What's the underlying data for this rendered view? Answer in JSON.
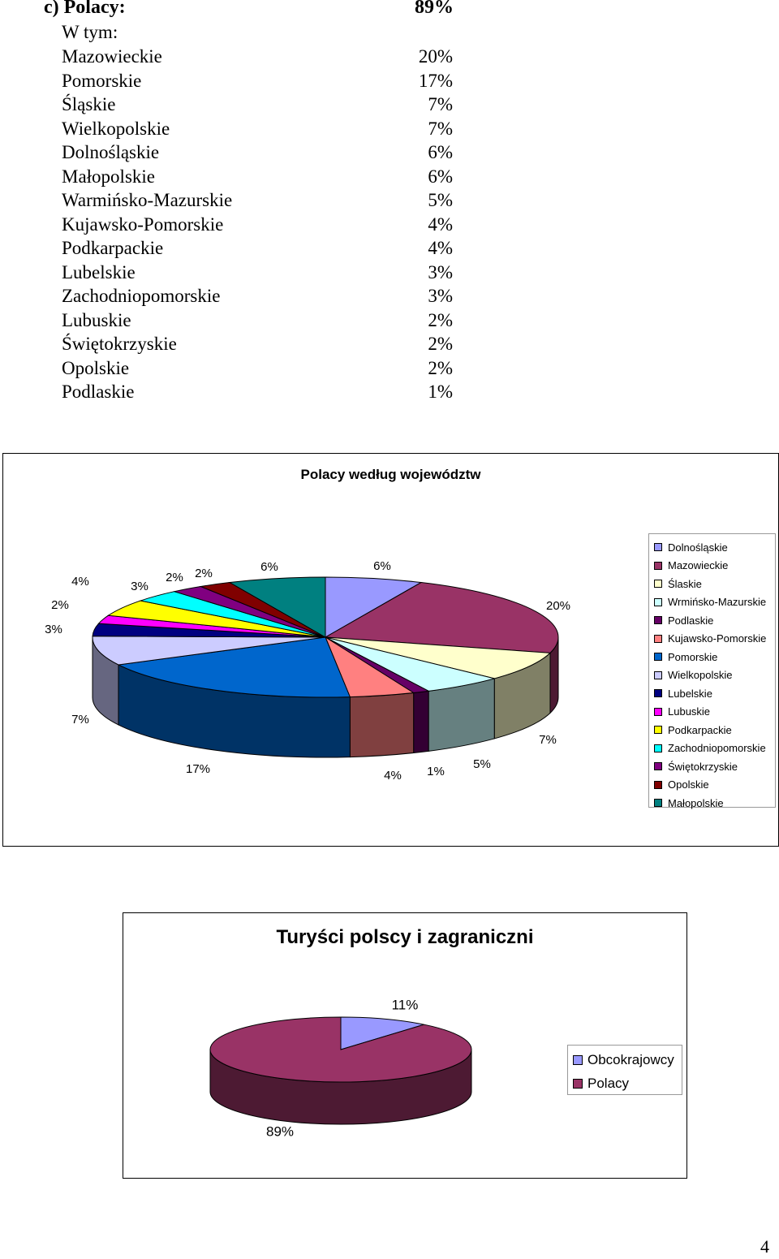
{
  "header": {
    "label": "c) Polacy:",
    "value": "89%",
    "subheading": "W tym:"
  },
  "stats": [
    {
      "name": "Mazowieckie",
      "pct": "20%"
    },
    {
      "name": "Pomorskie",
      "pct": "17%"
    },
    {
      "name": "Śląskie",
      "pct": "7%"
    },
    {
      "name": "Wielkopolskie",
      "pct": "7%"
    },
    {
      "name": "Dolnośląskie",
      "pct": "6%"
    },
    {
      "name": "Małopolskie",
      "pct": "6%"
    },
    {
      "name": "Warmińsko-Mazurskie",
      "pct": "5%"
    },
    {
      "name": "Kujawsko-Pomorskie",
      "pct": "4%"
    },
    {
      "name": "Podkarpackie",
      "pct": "4%"
    },
    {
      "name": "Lubelskie",
      "pct": "3%"
    },
    {
      "name": "Zachodniopomorskie",
      "pct": "3%"
    },
    {
      "name": "Lubuskie",
      "pct": "2%"
    },
    {
      "name": "Świętokrzyskie",
      "pct": "2%"
    },
    {
      "name": "Opolskie",
      "pct": "2%"
    },
    {
      "name": "Podlaskie",
      "pct": "1%"
    }
  ],
  "page_number": "4",
  "chart_data": [
    {
      "type": "pie",
      "title": "Polacy według województw",
      "legend_position": "right",
      "slices": [
        {
          "label": "Dolnośląskie",
          "value": 6,
          "display": "6%",
          "color": "#9999ff",
          "side": "#6b6bb3"
        },
        {
          "label": "Mazowieckie",
          "value": 20,
          "display": "20%",
          "color": "#993366",
          "side": "#4d1a33"
        },
        {
          "label": "Ślaskie",
          "value": 7,
          "display": "7%",
          "color": "#ffffcc",
          "side": "#808066"
        },
        {
          "label": "Wrmińsko-Mazurskie",
          "value": 5,
          "display": "5%",
          "color": "#ccffff",
          "side": "#668080"
        },
        {
          "label": "Podlaskie",
          "value": 1,
          "display": "1%",
          "color": "#660066",
          "side": "#330033"
        },
        {
          "label": "Kujawsko-Pomorskie",
          "value": 4,
          "display": "4%",
          "color": "#ff8080",
          "side": "#804040"
        },
        {
          "label": "Pomorskie",
          "value": 17,
          "display": "17%",
          "color": "#0066cc",
          "side": "#003366"
        },
        {
          "label": "Wielkopolskie",
          "value": 7,
          "display": "7%",
          "color": "#ccccff",
          "side": "#666680"
        },
        {
          "label": "Lubelskie",
          "value": 3,
          "display": "3%",
          "color": "#000080",
          "side": "#000040"
        },
        {
          "label": "Lubuskie",
          "value": 2,
          "display": "2%",
          "color": "#ff00ff",
          "side": "#800080"
        },
        {
          "label": "Podkarpackie",
          "value": 4,
          "display": "4%",
          "color": "#ffff00",
          "side": "#808000"
        },
        {
          "label": "Zachodniopomorskie",
          "value": 3,
          "display": "3%",
          "color": "#00ffff",
          "side": "#008080"
        },
        {
          "label": "Świętokrzyskie",
          "value": 2,
          "display": "2%",
          "color": "#800080",
          "side": "#400040"
        },
        {
          "label": "Opolskie",
          "value": 2,
          "display": "2%",
          "color": "#800000",
          "side": "#400000"
        },
        {
          "label": "Małopolskie",
          "value": 6,
          "display": "6%",
          "color": "#008080",
          "side": "#004040"
        }
      ]
    },
    {
      "type": "pie",
      "title": "Turyści polscy i zagraniczni",
      "legend_position": "right",
      "slices": [
        {
          "label": "Obcokrajowcy",
          "value": 11,
          "display": "11%",
          "color": "#9999ff",
          "side": "#6b6bb3"
        },
        {
          "label": "Polacy",
          "value": 89,
          "display": "89%",
          "color": "#993366",
          "side": "#4d1a33"
        }
      ]
    }
  ]
}
